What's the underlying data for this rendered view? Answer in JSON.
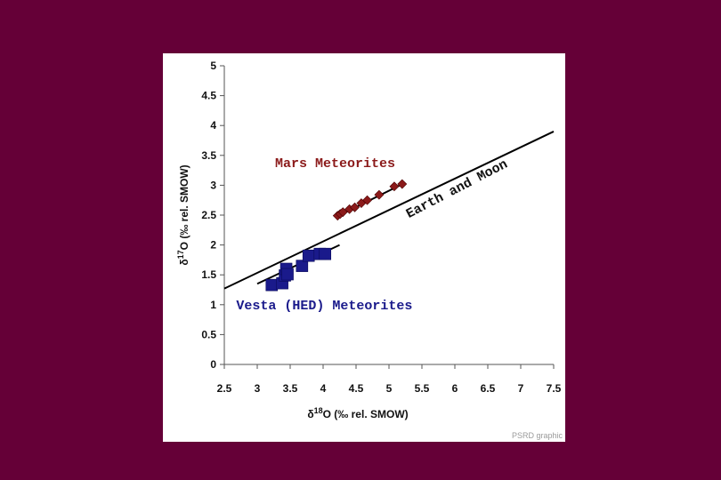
{
  "chart_data": {
    "type": "scatter",
    "title": "",
    "xlabel": {
      "delta": "δ",
      "sup": "18",
      "rest": "O (‰ rel. SMOW)"
    },
    "ylabel": {
      "delta": "δ",
      "sup": "17",
      "rest": "O (‰ rel. SMOW)"
    },
    "xlim": [
      2.5,
      7.5
    ],
    "ylim": [
      0,
      5
    ],
    "x_ticks": [
      "2.5",
      "3",
      "3.5",
      "4",
      "4.5",
      "5",
      "5.5",
      "6",
      "6.5",
      "7",
      "7.5"
    ],
    "y_ticks": [
      "0",
      "0.5",
      "1",
      "1.5",
      "2",
      "2.5",
      "3",
      "3.5",
      "4",
      "4.5",
      "5"
    ],
    "grid": false,
    "series": [
      {
        "name": "Mars Meteorites",
        "marker": "diamond",
        "color": "#8b1a1a",
        "points": [
          [
            4.22,
            2.49
          ],
          [
            4.26,
            2.52
          ],
          [
            4.3,
            2.55
          ],
          [
            4.4,
            2.6
          ],
          [
            4.48,
            2.63
          ],
          [
            4.58,
            2.7
          ],
          [
            4.67,
            2.75
          ],
          [
            4.85,
            2.84
          ],
          [
            5.08,
            2.98
          ],
          [
            5.2,
            3.02
          ]
        ]
      },
      {
        "name": "Vesta (HED) Meteorites",
        "marker": "square",
        "color": "#1a1a8b",
        "points": [
          [
            3.22,
            1.33
          ],
          [
            3.38,
            1.36
          ],
          [
            3.42,
            1.49
          ],
          [
            3.44,
            1.6
          ],
          [
            3.46,
            1.51
          ],
          [
            3.68,
            1.65
          ],
          [
            3.78,
            1.82
          ],
          [
            3.95,
            1.85
          ],
          [
            4.03,
            1.85
          ]
        ]
      }
    ],
    "lines": [
      {
        "name": "Earth and Moon",
        "color": "#000000",
        "from": [
          2.5,
          1.27
        ],
        "to": [
          7.5,
          3.9
        ]
      },
      {
        "name": "mars-fit",
        "color": "#000000",
        "from": [
          4.2,
          2.47
        ],
        "to": [
          5.24,
          3.04
        ]
      },
      {
        "name": "vesta-fit",
        "color": "#000000",
        "from": [
          3.0,
          1.35
        ],
        "to": [
          4.25,
          2.0
        ]
      }
    ],
    "annotations": [
      {
        "text": "Mars Meteorites",
        "color": "#8b1a1a",
        "x": 3.27,
        "y": 3.3,
        "rotate": 0
      },
      {
        "text": "Earth and Moon",
        "color": "#111111",
        "x": 5.3,
        "y": 2.45,
        "rotate": -27.5
      },
      {
        "text": "Vesta (HED) Meteorites",
        "color": "#1a1a8b",
        "x": 2.68,
        "y": 0.92,
        "rotate": 0
      }
    ]
  },
  "credit": "PSRD graphic"
}
